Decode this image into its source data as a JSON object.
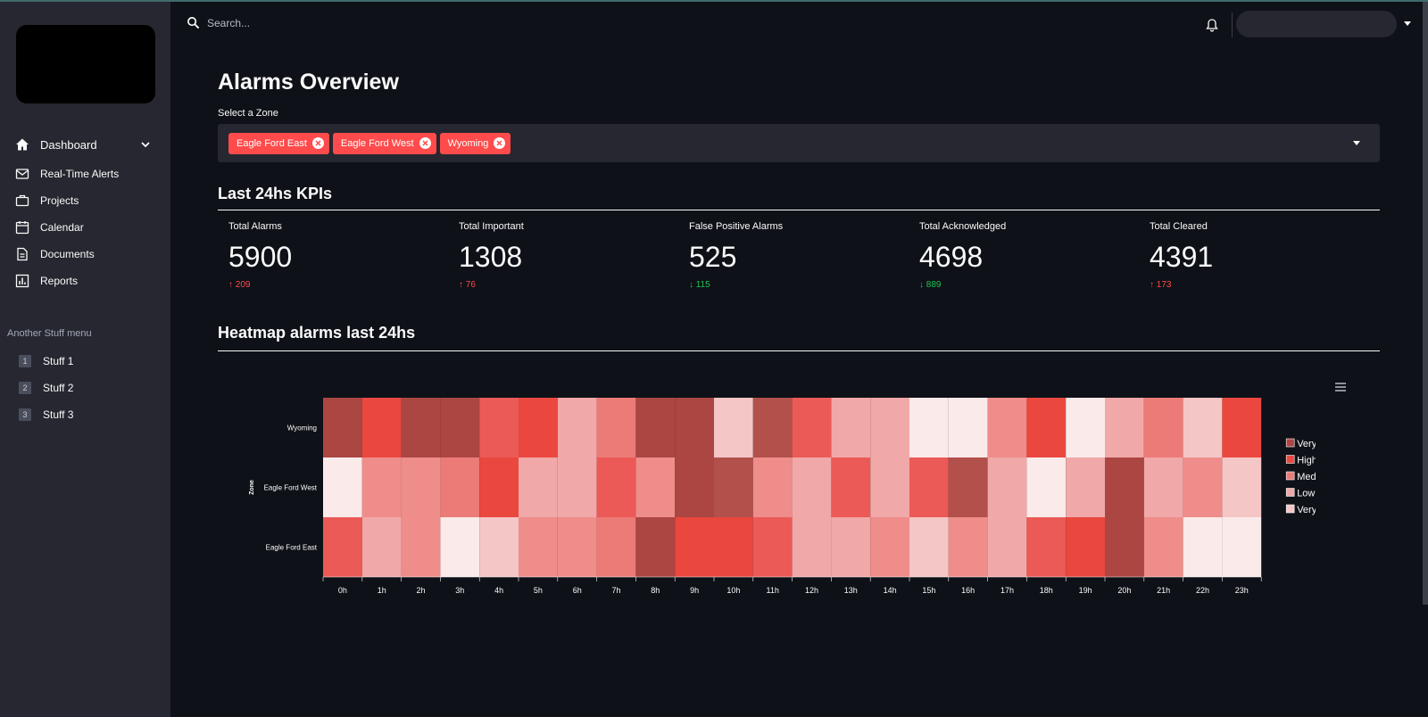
{
  "sidebar": {
    "nav": [
      {
        "label": "Dashboard",
        "icon": "home-icon"
      },
      {
        "label": "Real-Time Alerts",
        "icon": "mail-icon"
      },
      {
        "label": "Projects",
        "icon": "briefcase-icon"
      },
      {
        "label": "Calendar",
        "icon": "calendar-icon"
      },
      {
        "label": "Documents",
        "icon": "document-icon"
      },
      {
        "label": "Reports",
        "icon": "bar-chart-icon"
      }
    ],
    "section_label": "Another Stuff menu",
    "stuff": [
      {
        "num": "1",
        "label": "Stuff 1"
      },
      {
        "num": "2",
        "label": "Stuff 2"
      },
      {
        "num": "3",
        "label": "Stuff 3"
      }
    ]
  },
  "topbar": {
    "search_placeholder": "Search..."
  },
  "main": {
    "title": "Alarms Overview",
    "zone_label": "Select a Zone",
    "selected_zones": [
      "Eagle Ford East",
      "Eagle Ford West",
      "Wyoming"
    ],
    "kpi_section_title": "Last 24hs KPIs",
    "kpis": [
      {
        "label": "Total Alarms",
        "value": "5900",
        "delta": "209",
        "direction": "up"
      },
      {
        "label": "Total Important",
        "value": "1308",
        "delta": "76",
        "direction": "up"
      },
      {
        "label": "False Positive Alarms",
        "value": "525",
        "delta": "115",
        "direction": "down"
      },
      {
        "label": "Total Acknowledged",
        "value": "4698",
        "delta": "889",
        "direction": "down"
      },
      {
        "label": "Total Cleared",
        "value": "4391",
        "delta": "173",
        "direction": "up"
      }
    ],
    "heatmap_section_title": "Heatmap alarms last 24hs"
  },
  "colors": {
    "accent": "#ff4b4b",
    "down": "#21c354",
    "levels": [
      "#faeaea",
      "#f5c6c6",
      "#f1a8a8",
      "#ef8d8a",
      "#ec7b77",
      "#eb5a57",
      "#ea473f",
      "#b2504c",
      "#ab4643"
    ]
  },
  "chart_data": {
    "type": "heatmap",
    "ylabel": "Zone",
    "xlabel": "",
    "x": [
      "0h",
      "1h",
      "2h",
      "3h",
      "4h",
      "5h",
      "6h",
      "7h",
      "8h",
      "9h",
      "10h",
      "11h",
      "12h",
      "13h",
      "14h",
      "15h",
      "16h",
      "17h",
      "18h",
      "19h",
      "20h",
      "21h",
      "22h",
      "23h"
    ],
    "y": [
      "Wyoming",
      "Eagle Ford West",
      "Eagle Ford East"
    ],
    "z": [
      [
        8,
        6,
        8,
        8,
        5,
        6,
        2,
        4,
        8,
        8,
        1,
        7,
        5,
        2,
        2,
        0,
        0,
        3,
        6,
        0,
        2,
        4,
        1,
        6
      ],
      [
        0,
        3,
        3,
        4,
        6,
        2,
        2,
        5,
        3,
        8,
        7,
        3,
        2,
        5,
        2,
        5,
        7,
        2,
        0,
        2,
        8,
        2,
        3,
        1
      ],
      [
        5,
        2,
        3,
        0,
        1,
        3,
        3,
        4,
        8,
        6,
        6,
        5,
        2,
        2,
        3,
        1,
        3,
        2,
        5,
        6,
        8,
        3,
        0,
        0
      ]
    ],
    "legend": [
      "Very High",
      "High",
      "Medium",
      "Low",
      "Very Low"
    ],
    "legend_colors": [
      "#ab4643",
      "#ea473f",
      "#ec7b77",
      "#f1a8a8",
      "#f5c6c6"
    ],
    "legend_position": "right"
  }
}
